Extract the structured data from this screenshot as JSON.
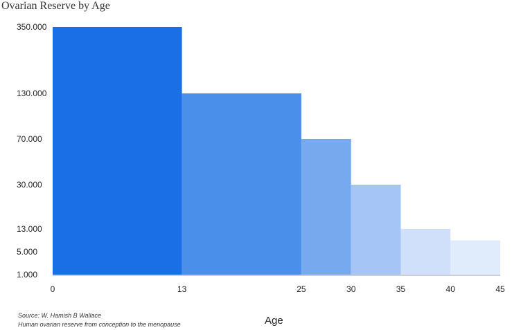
{
  "chart_data": {
    "type": "bar",
    "title": "Ovarian Reserve by Age",
    "xlabel": "Age",
    "ylabel": "",
    "y_ticks": [
      {
        "label": "350.000",
        "value": 350000
      },
      {
        "label": "130.000",
        "value": 130000
      },
      {
        "label": "70.000",
        "value": 70000
      },
      {
        "label": "30.000",
        "value": 30000
      },
      {
        "label": "13.000",
        "value": 13000
      },
      {
        "label": "5.000",
        "value": 5000
      },
      {
        "label": "1.000",
        "value": 1000
      }
    ],
    "x_ticks": [
      {
        "label": "0",
        "value": 0
      },
      {
        "label": "13",
        "value": 13
      },
      {
        "label": "25",
        "value": 25
      },
      {
        "label": "30",
        "value": 30
      },
      {
        "label": "35",
        "value": 35
      },
      {
        "label": "40",
        "value": 40
      },
      {
        "label": "45",
        "value": 45
      }
    ],
    "bins": [
      {
        "from": 0,
        "to": 13,
        "value": 350000,
        "color": "#1a6fe6"
      },
      {
        "from": 13,
        "to": 25,
        "value": 130000,
        "color": "#4a8fea"
      },
      {
        "from": 25,
        "to": 30,
        "value": 70000,
        "color": "#77a9ef"
      },
      {
        "from": 30,
        "to": 35,
        "value": 30000,
        "color": "#a4c5f5"
      },
      {
        "from": 35,
        "to": 40,
        "value": 13000,
        "color": "#d0e0fa"
      },
      {
        "from": 40,
        "to": 45,
        "value": 9000,
        "color": "#e0ebfb"
      }
    ],
    "axis_color": "#c9cfd6"
  },
  "source": {
    "line1": "Source: W. Hamish  B Wallace",
    "line2": "Human ovarian reserve from conception to the menopause"
  }
}
